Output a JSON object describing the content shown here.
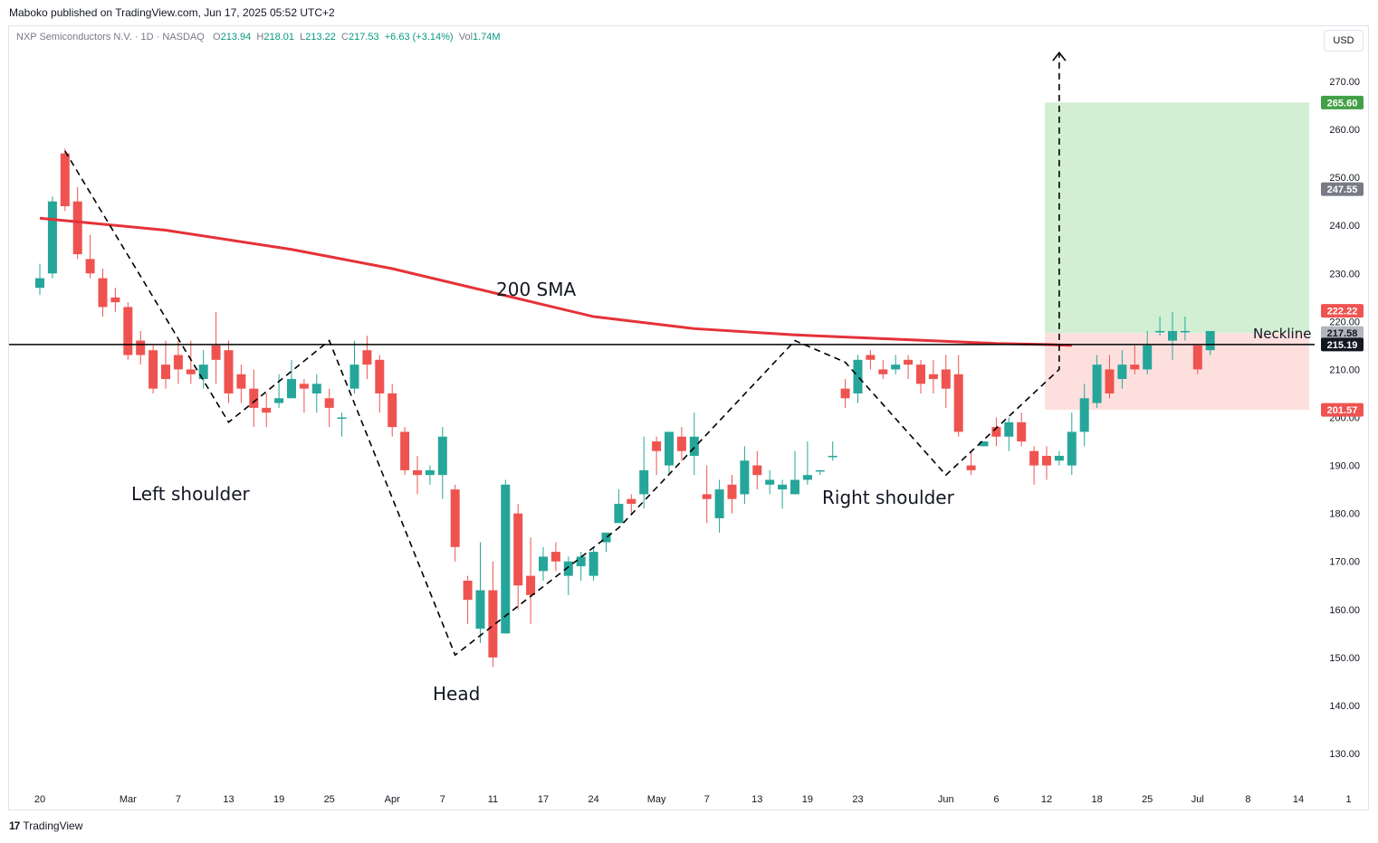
{
  "header": {
    "published": "Maboko published on TradingView.com, Jun 17, 2025 05:52 UTC+2",
    "symbol": "NXP Semiconductors N.V. · 1D · NASDAQ",
    "o_key": "O",
    "o_val": "213.94",
    "h_key": "H",
    "h_val": "218.01",
    "l_key": "L",
    "l_val": "213.22",
    "c_key": "C",
    "c_val": "217.53",
    "change": "+6.63 (+3.14%)",
    "vol_key": "Vol",
    "vol_val": "1.74M"
  },
  "currency": "USD",
  "footer": {
    "logo_mark": "17",
    "brand": "TradingView"
  },
  "colors": {
    "up": "#26a69a",
    "down": "#ef5350",
    "sma": "#e53238",
    "target_zone": "#d2efd4",
    "stop_zone": "#fde0de"
  },
  "chart_data": {
    "type": "candlestick",
    "ylim": [
      123,
      283
    ],
    "y_ticks": [
      "270.00",
      "260.00",
      "250.00",
      "240.00",
      "230.00",
      "220.00",
      "210.00",
      "200.00",
      "190.00",
      "180.00",
      "170.00",
      "160.00",
      "150.00",
      "140.00",
      "130.00"
    ],
    "x_ticks": [
      {
        "label": "20",
        "i": 0
      },
      {
        "label": "Mar",
        "i": 7
      },
      {
        "label": "7",
        "i": 11
      },
      {
        "label": "13",
        "i": 15
      },
      {
        "label": "19",
        "i": 19
      },
      {
        "label": "25",
        "i": 23
      },
      {
        "label": "Apr",
        "i": 28
      },
      {
        "label": "7",
        "i": 32
      },
      {
        "label": "11",
        "i": 36
      },
      {
        "label": "17",
        "i": 40
      },
      {
        "label": "24",
        "i": 44
      },
      {
        "label": "May",
        "i": 49
      },
      {
        "label": "7",
        "i": 53
      },
      {
        "label": "13",
        "i": 57
      },
      {
        "label": "19",
        "i": 61
      },
      {
        "label": "23",
        "i": 65
      },
      {
        "label": "Jun",
        "i": 72
      },
      {
        "label": "6",
        "i": 76
      },
      {
        "label": "12",
        "i": 80
      },
      {
        "label": "18",
        "i": 84
      },
      {
        "label": "25",
        "i": 88
      },
      {
        "label": "Jul",
        "i": 92
      },
      {
        "label": "8",
        "i": 96
      },
      {
        "label": "14",
        "i": 100
      },
      {
        "label": "1",
        "i": 104
      }
    ],
    "candles": [
      [
        227,
        229,
        232,
        225.5
      ],
      [
        230,
        245,
        246,
        229
      ],
      [
        255,
        244,
        256,
        243
      ],
      [
        245,
        234,
        248,
        233
      ],
      [
        233,
        230,
        238,
        229
      ],
      [
        229,
        223,
        231,
        221
      ],
      [
        225,
        224,
        227,
        222
      ],
      [
        223,
        213,
        224,
        212
      ],
      [
        216,
        213,
        218,
        211
      ],
      [
        214,
        206,
        215,
        205
      ],
      [
        211,
        208,
        216,
        206
      ],
      [
        213,
        210,
        216,
        207
      ],
      [
        210,
        209,
        216,
        207
      ],
      [
        208,
        211,
        214,
        206
      ],
      [
        215,
        212,
        222,
        207
      ],
      [
        214,
        205,
        216,
        203
      ],
      [
        209,
        206,
        211,
        203
      ],
      [
        206,
        202,
        210,
        198
      ],
      [
        202,
        201,
        205,
        198
      ],
      [
        203,
        204,
        209,
        202
      ],
      [
        204,
        208,
        212,
        204
      ],
      [
        207,
        206,
        208,
        201
      ],
      [
        205,
        207,
        209,
        201
      ],
      [
        204,
        202,
        206,
        198
      ],
      [
        200,
        200,
        201,
        196
      ],
      [
        206,
        211,
        216,
        205
      ],
      [
        214,
        211,
        217,
        208
      ],
      [
        212,
        205,
        213,
        201
      ],
      [
        205,
        198,
        207,
        196
      ],
      [
        197,
        189,
        198,
        188
      ],
      [
        189,
        188,
        192,
        184
      ],
      [
        188,
        189,
        190,
        186
      ],
      [
        188,
        196,
        198,
        183
      ],
      [
        185,
        173,
        186,
        170
      ],
      [
        166,
        162,
        167,
        157
      ],
      [
        156,
        164,
        174,
        153
      ],
      [
        164,
        150,
        170,
        148
      ],
      [
        155,
        186,
        187,
        155
      ],
      [
        180,
        165,
        182,
        160
      ],
      [
        167,
        163,
        175,
        157
      ],
      [
        168,
        171,
        173,
        166
      ],
      [
        172,
        170,
        174,
        168
      ],
      [
        167,
        170,
        171,
        163
      ],
      [
        169,
        171,
        172,
        166
      ],
      [
        167,
        172,
        173,
        166
      ],
      [
        174,
        176,
        176,
        172
      ],
      [
        178,
        182,
        185,
        178
      ],
      [
        183,
        182,
        184,
        180
      ],
      [
        184,
        189,
        196,
        181
      ],
      [
        195,
        193,
        196,
        188
      ],
      [
        190,
        197,
        197,
        188
      ],
      [
        196,
        193,
        198,
        191
      ],
      [
        192,
        196,
        201,
        188
      ],
      [
        184,
        183,
        190,
        178
      ],
      [
        179,
        185,
        187,
        176
      ],
      [
        186,
        183,
        188,
        180
      ],
      [
        184,
        191,
        194,
        182
      ],
      [
        190,
        188,
        193,
        185
      ],
      [
        186,
        187,
        189,
        184
      ],
      [
        185,
        186,
        187,
        181
      ],
      [
        184,
        187,
        193,
        184
      ],
      [
        187,
        188,
        195,
        186
      ],
      [
        189,
        189,
        189,
        188
      ],
      [
        192,
        192,
        195,
        191
      ],
      [
        206,
        204,
        208,
        202
      ],
      [
        205,
        212,
        213,
        203
      ],
      [
        213,
        212,
        214,
        210
      ],
      [
        210,
        209,
        212,
        208
      ],
      [
        210,
        211,
        213,
        209
      ],
      [
        212,
        211,
        213,
        208
      ],
      [
        211,
        207,
        212,
        205
      ],
      [
        209,
        208,
        212,
        205
      ],
      [
        210,
        206,
        213,
        202
      ],
      [
        209,
        197,
        213,
        196
      ],
      [
        190,
        189,
        193,
        188
      ],
      [
        194,
        195,
        194,
        195
      ],
      [
        198,
        196,
        200,
        194
      ],
      [
        196,
        199,
        200,
        193
      ],
      [
        199,
        195,
        201,
        194
      ],
      [
        193,
        190,
        194,
        186
      ],
      [
        192,
        190,
        194,
        187
      ],
      [
        191,
        192,
        193,
        190
      ],
      [
        190,
        197,
        201,
        188
      ],
      [
        197,
        204,
        207,
        194
      ],
      [
        203,
        211,
        213,
        202
      ],
      [
        210,
        205,
        213,
        204
      ],
      [
        208,
        211,
        214,
        206
      ],
      [
        211,
        210,
        215,
        209
      ],
      [
        210,
        215,
        218,
        209
      ],
      [
        218,
        218,
        221,
        217
      ],
      [
        216,
        218,
        222,
        212
      ],
      [
        218,
        218,
        221,
        216
      ],
      [
        215,
        210,
        215,
        209
      ],
      [
        214,
        218,
        218,
        213
      ]
    ],
    "candle_index_map": [
      0,
      1,
      2,
      3,
      4,
      5,
      6,
      7,
      8,
      9,
      10,
      11,
      12,
      13,
      14,
      15,
      16,
      17,
      18,
      19,
      20,
      21,
      22,
      23,
      24,
      25,
      26,
      27,
      28,
      29,
      30,
      31,
      32,
      33,
      34,
      35,
      36,
      37,
      38,
      39,
      40,
      41,
      42,
      43,
      44,
      45,
      46,
      47,
      48,
      49,
      50,
      51,
      52,
      53,
      54,
      55,
      56,
      57,
      58,
      59,
      60,
      61,
      62,
      63,
      64,
      65,
      66,
      67,
      68,
      69,
      70,
      71,
      72,
      73,
      74,
      75,
      76,
      77,
      78,
      79,
      80,
      81,
      82,
      83,
      84,
      85,
      86,
      87,
      88,
      89,
      90,
      91,
      92,
      93
    ],
    "sma200": [
      [
        0,
        241.5
      ],
      [
        10,
        239
      ],
      [
        20,
        235
      ],
      [
        28,
        231
      ],
      [
        36,
        226
      ],
      [
        44,
        221
      ],
      [
        52,
        218.5
      ],
      [
        60,
        217.2
      ],
      [
        68,
        216.3
      ],
      [
        76,
        215.4
      ],
      [
        80,
        215.2
      ],
      [
        82,
        215.0
      ]
    ],
    "neckline": 215.19,
    "price_labels": [
      {
        "text": "265.60",
        "value": 265.6,
        "color": "#43a047"
      },
      {
        "text": "247.55",
        "value": 247.55,
        "color": "#787b86"
      },
      {
        "text": "222.22",
        "value": 222.22,
        "color": "#ef5350"
      },
      {
        "text": "217.58",
        "value": 217.58,
        "color": "#b2b5be"
      },
      {
        "text": "215.19",
        "value": 215.19,
        "color": "#131722"
      },
      {
        "text": "201.57",
        "value": 201.57,
        "color": "#ef5350"
      }
    ],
    "position": {
      "entry": 217.58,
      "target": 265.6,
      "stop": 201.57
    },
    "annotations": {
      "sma_label": "200 SMA",
      "neckline_label": "Neckline",
      "left_shoulder": "Left shoulder",
      "head": "Head",
      "right_shoulder": "Right shoulder"
    },
    "pattern_line": [
      [
        2,
        255.5
      ],
      [
        15,
        199
      ],
      [
        23,
        216
      ],
      [
        33,
        150.5
      ],
      [
        46,
        177
      ],
      [
        60,
        216
      ],
      [
        64,
        211.5
      ],
      [
        72,
        188
      ],
      [
        81,
        210
      ],
      [
        81,
        276
      ]
    ]
  }
}
